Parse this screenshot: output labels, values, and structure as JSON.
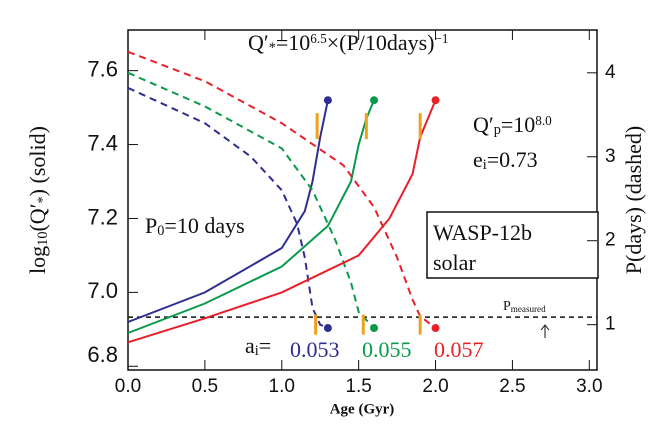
{
  "chart_data": {
    "type": "line",
    "x_label": "Age (Gyr)",
    "y_label": {
      "parts": [
        {
          "t": "log"
        },
        {
          "t": "10",
          "sub": true
        },
        {
          "t": "(Q′"
        },
        {
          "t": "*",
          "sub": true
        },
        {
          "t": ")   (solid)"
        }
      ]
    },
    "y2_label": "P(days)   (dashed)",
    "xlim": [
      0,
      3.05
    ],
    "ylim": [
      6.79,
      7.71
    ],
    "y2lim": [
      0.46,
      4.51
    ],
    "xticks": [
      {
        "value": 0,
        "label": "0.0"
      },
      {
        "value": 0.5,
        "label": "0.5"
      },
      {
        "value": 1,
        "label": "1.0"
      },
      {
        "value": 1.5,
        "label": "1.5"
      },
      {
        "value": 2,
        "label": "2.0"
      },
      {
        "value": 2.5,
        "label": "2.5"
      },
      {
        "value": 3,
        "label": "3.0"
      }
    ],
    "yticks": [
      6.8,
      {
        "value": 7,
        "label": "7.0"
      },
      7.2,
      7.4,
      7.6
    ],
    "y2ticks": [
      1,
      2,
      3,
      4
    ],
    "series": [
      {
        "name": "0.053",
        "color": "#2e2e8f",
        "x": [
          0,
          0.5,
          1.0,
          1.15,
          1.2,
          1.25,
          1.3
        ],
        "values": [
          6.92,
          7.0,
          7.12,
          7.22,
          7.3,
          7.42,
          7.52
        ],
        "p_x": [
          0,
          0.5,
          0.8,
          1.0,
          1.1,
          1.15,
          1.2,
          1.25,
          1.3
        ],
        "p_values": [
          3.82,
          3.4,
          3.0,
          2.6,
          2.2,
          1.8,
          1.2,
          1.0,
          0.96
        ]
      },
      {
        "name": "0.055",
        "color": "#0a9a4a",
        "x": [
          0,
          0.5,
          1.0,
          1.3,
          1.45,
          1.5,
          1.55,
          1.6
        ],
        "values": [
          6.89,
          6.97,
          7.07,
          7.18,
          7.3,
          7.4,
          7.47,
          7.52
        ],
        "p_x": [
          0,
          0.5,
          1.0,
          1.2,
          1.35,
          1.45,
          1.5,
          1.6
        ],
        "p_values": [
          4.0,
          3.6,
          3.1,
          2.6,
          2.0,
          1.5,
          1.15,
          0.96
        ]
      },
      {
        "name": "0.057",
        "color": "#e8202a",
        "x": [
          0,
          0.5,
          1.0,
          1.5,
          1.7,
          1.85,
          1.9,
          2.0
        ],
        "values": [
          6.865,
          6.93,
          7.0,
          7.1,
          7.2,
          7.32,
          7.42,
          7.52
        ],
        "p_x": [
          0,
          0.5,
          1.0,
          1.4,
          1.6,
          1.75,
          1.85,
          1.9,
          2.0
        ],
        "p_values": [
          4.25,
          3.9,
          3.4,
          2.9,
          2.4,
          1.8,
          1.3,
          1.1,
          0.96
        ]
      }
    ],
    "p_measured": {
      "value": 1.09,
      "label": {
        "parts": [
          {
            "t": "P"
          },
          {
            "t": "measured",
            "sub": true
          }
        ]
      }
    },
    "orange_marks": [
      {
        "x": 1.23,
        "y": 7.45
      },
      {
        "x": 1.55,
        "y": 7.45
      },
      {
        "x": 1.9,
        "y": 7.45
      }
    ],
    "orange_p_marks": [
      {
        "x": 1.22,
        "p": 1.0
      },
      {
        "x": 1.53,
        "p": 1.0
      },
      {
        "x": 1.9,
        "p": 1.0
      }
    ],
    "annotations": [
      {
        "parts": [
          {
            "t": "Q′"
          },
          {
            "t": "*",
            "sub": true
          },
          {
            "t": "=10"
          },
          {
            "t": "6.5",
            "sup": true
          },
          {
            "t": "×(P/10days)"
          },
          {
            "t": "−1",
            "sup": true
          }
        ]
      },
      {
        "parts": [
          {
            "t": "Q′"
          },
          {
            "t": "p",
            "sub": true
          },
          {
            "t": "=10"
          },
          {
            "t": "8.0",
            "sup": true
          }
        ]
      },
      {
        "parts": [
          {
            "t": "e"
          },
          {
            "t": "i",
            "sub": true
          },
          {
            "t": "=0.73"
          }
        ]
      },
      {
        "parts": [
          {
            "t": "P"
          },
          {
            "t": "0",
            "sub": true
          },
          {
            "t": "=10 days"
          }
        ]
      },
      {
        "parts": [
          {
            "t": "a"
          },
          {
            "t": "i",
            "sub": true
          },
          {
            "t": "="
          }
        ]
      }
    ],
    "box": [
      "WASP-12b",
      "solar"
    ]
  }
}
